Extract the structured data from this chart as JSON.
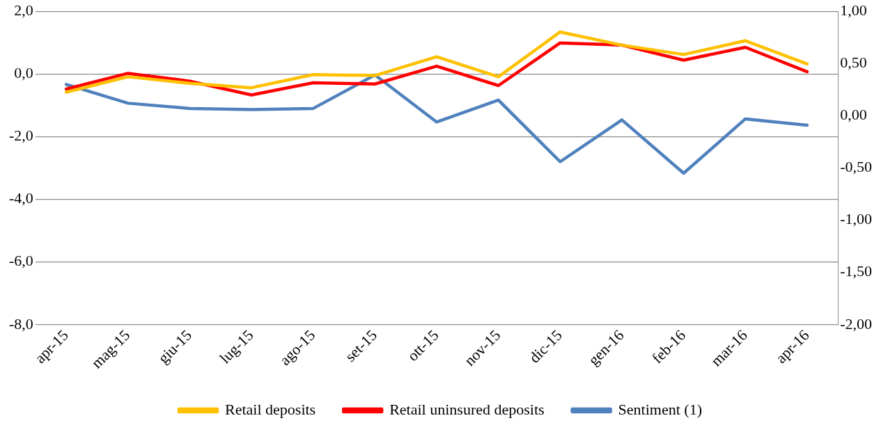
{
  "chart_data": {
    "type": "line",
    "categories": [
      "apr-15",
      "mag-15",
      "giu-15",
      "lug-15",
      "ago-15",
      "set-15",
      "ott-15",
      "nov-15",
      "dic-15",
      "gen-16",
      "feb-16",
      "mar-16",
      "apr-16"
    ],
    "series": [
      {
        "name": "Retail deposits",
        "color": "#ffc000",
        "values": [
          -0.58,
          -0.09,
          -0.3,
          -0.44,
          -0.02,
          -0.05,
          0.55,
          -0.09,
          1.34,
          0.92,
          0.62,
          1.06,
          0.32
        ]
      },
      {
        "name": "Retail uninsured deposits",
        "color": "#ff0000",
        "values": [
          -0.48,
          0.02,
          -0.23,
          -0.67,
          -0.28,
          -0.32,
          0.25,
          -0.37,
          0.99,
          0.92,
          0.44,
          0.85,
          0.07
        ]
      },
      {
        "name": "Sentiment (1)",
        "color": "#4f81bd",
        "axis": "y2",
        "values": [
          0.3,
          0.12,
          0.07,
          0.06,
          0.07,
          0.39,
          -0.06,
          0.15,
          -0.44,
          -0.04,
          -0.55,
          -0.03,
          -0.09
        ]
      }
    ],
    "ylim": [
      -8,
      2
    ],
    "yticks": [
      {
        "value": -8,
        "label": "-8,0"
      },
      {
        "value": -6,
        "label": "-6,0"
      },
      {
        "value": -4,
        "label": "-4,0"
      },
      {
        "value": -2,
        "label": "-2,0"
      },
      {
        "value": 0,
        "label": "0,0"
      },
      {
        "value": 2,
        "label": "2,0"
      }
    ],
    "y2lim": [
      -2,
      1
    ],
    "y2ticks": [
      {
        "value": -2,
        "label": "-2,00"
      },
      {
        "value": -1.5,
        "label": "-1,50"
      },
      {
        "value": -1,
        "label": "-1,00"
      },
      {
        "value": -0.5,
        "label": "-0,50"
      },
      {
        "value": 0,
        "label": "0,00"
      },
      {
        "value": 0.5,
        "label": "0,50"
      },
      {
        "value": 1,
        "label": "1,00"
      }
    ],
    "grid": "y",
    "legend": "bottom",
    "marker": "none",
    "line_style": "solid"
  }
}
